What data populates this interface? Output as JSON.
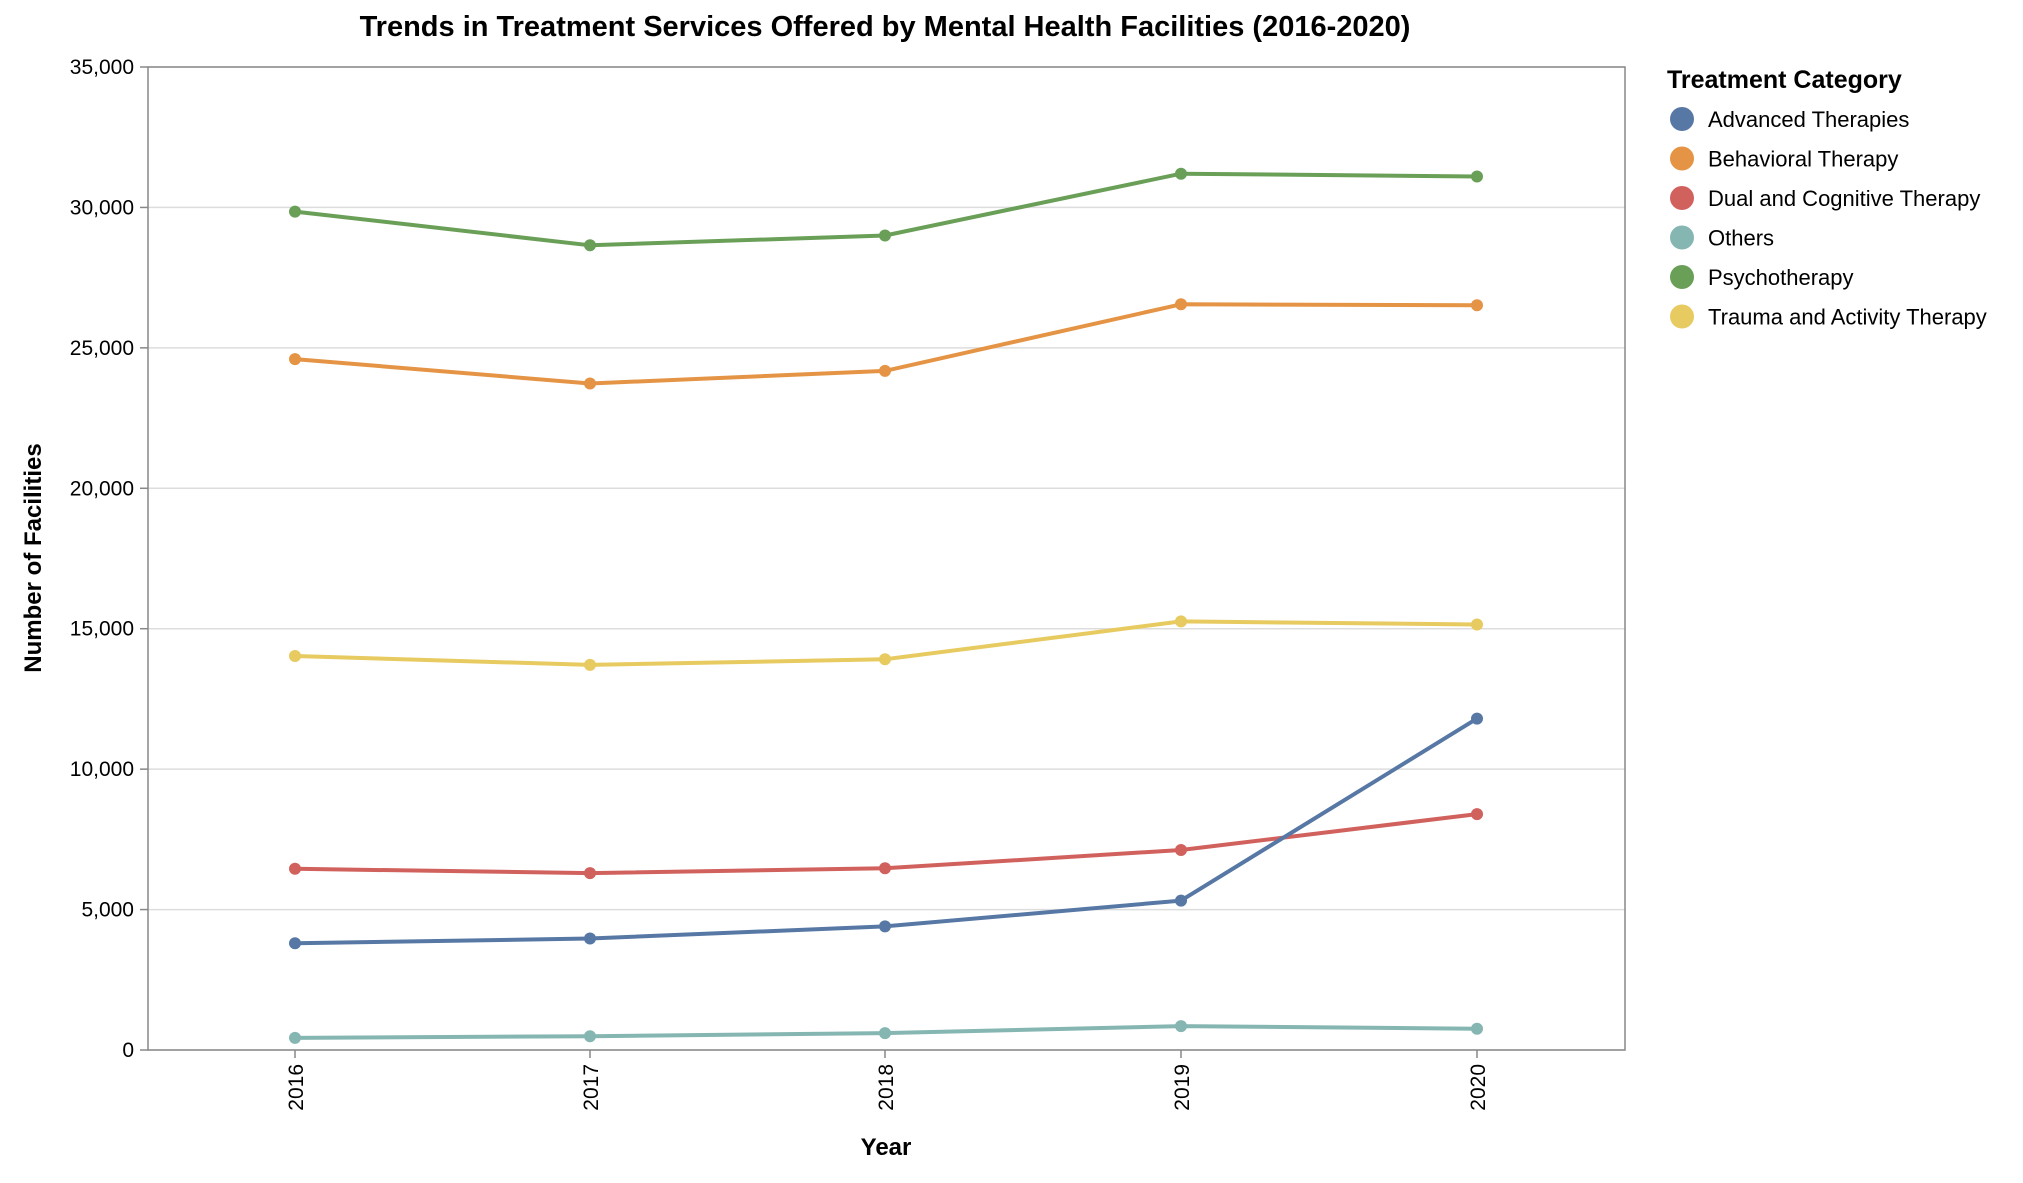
{
  "chart_data": {
    "type": "line",
    "title": "Trends in Treatment Services Offered by Mental Health Facilities (2016-2020)",
    "xlabel": "Year",
    "ylabel": "Number of Facilities",
    "x": [
      "2016",
      "2017",
      "2018",
      "2019",
      "2020"
    ],
    "ylim": [
      0,
      35000
    ],
    "yticks": [
      0,
      5000,
      10000,
      15000,
      20000,
      25000,
      30000,
      35000
    ],
    "ytick_labels": [
      "0",
      "5,000",
      "10,000",
      "15,000",
      "20,000",
      "25,000",
      "30,000",
      "35,000"
    ],
    "grid": true,
    "legend": {
      "title": "Treatment Category",
      "placement": "right"
    },
    "series": [
      {
        "name": "Advanced Therapies",
        "color": "#5778a4",
        "values": [
          3800,
          3970,
          4400,
          5320,
          11800
        ]
      },
      {
        "name": "Behavioral Therapy",
        "color": "#e49444",
        "values": [
          24600,
          23730,
          24180,
          26550,
          26520
        ]
      },
      {
        "name": "Dual and Cognitive Therapy",
        "color": "#d1615d",
        "values": [
          6450,
          6300,
          6470,
          7120,
          8400
        ]
      },
      {
        "name": "Others",
        "color": "#85b6b2",
        "values": [
          430,
          490,
          600,
          850,
          760
        ]
      },
      {
        "name": "Psychotherapy",
        "color": "#6a9f58",
        "values": [
          29850,
          28650,
          29000,
          31200,
          31100
        ]
      },
      {
        "name": "Trauma and Activity Therapy",
        "color": "#e7ca60",
        "values": [
          14030,
          13710,
          13910,
          15260,
          15150
        ]
      }
    ]
  }
}
